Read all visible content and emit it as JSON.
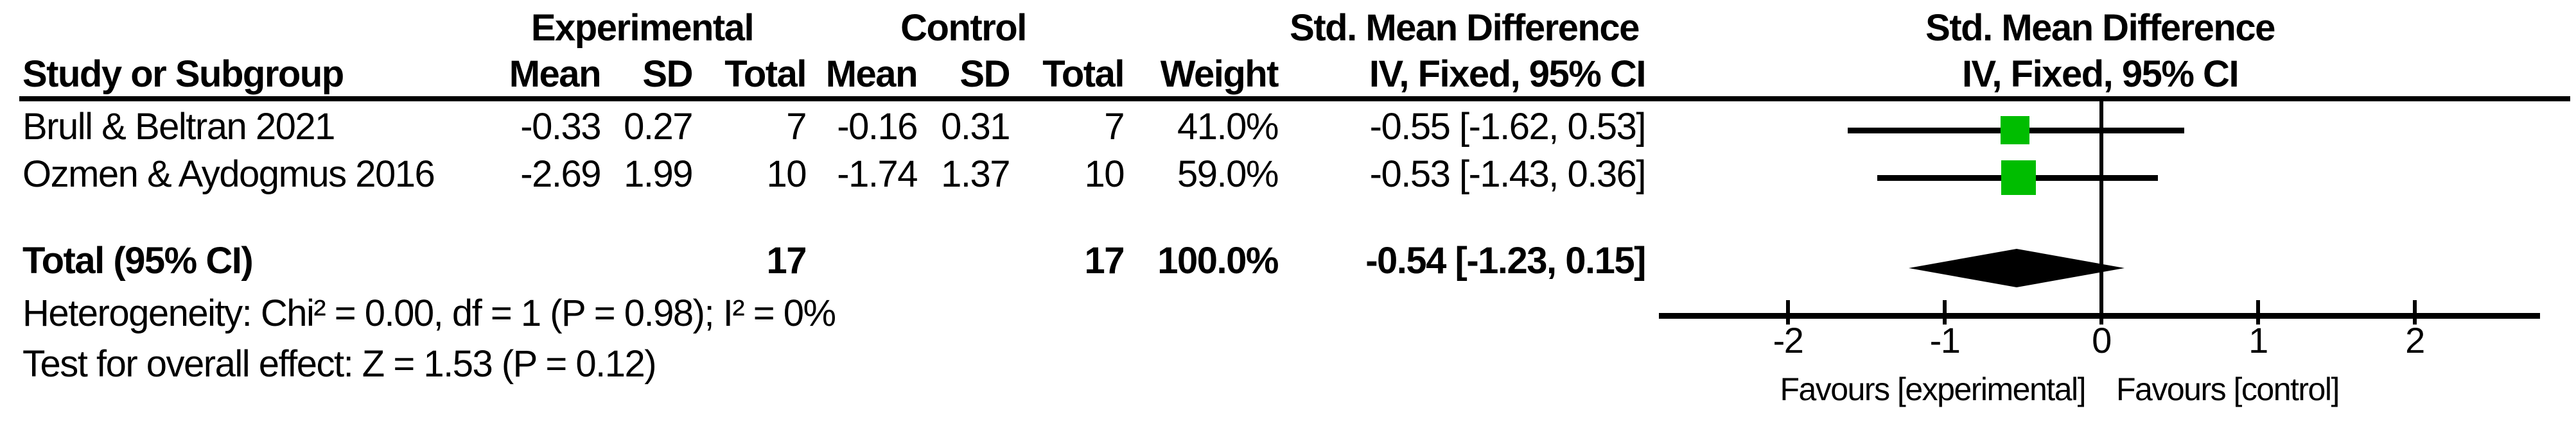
{
  "table": {
    "group_headers": {
      "experimental": "Experimental",
      "control": "Control",
      "effect": "Std. Mean Difference"
    },
    "col_headers": {
      "study": "Study or Subgroup",
      "mean": "Mean",
      "sd": "SD",
      "total": "Total",
      "mean2": "Mean",
      "sd2": "SD",
      "total2": "Total",
      "weight": "Weight",
      "ci": "IV, Fixed, 95% CI"
    },
    "rows": [
      {
        "study": "Brull & Beltran 2021",
        "exp_mean": "-0.33",
        "exp_sd": "0.27",
        "exp_total": "7",
        "ctl_mean": "-0.16",
        "ctl_sd": "0.31",
        "ctl_total": "7",
        "weight": "41.0%",
        "ci": "-0.55 [-1.62, 0.53]"
      },
      {
        "study": "Ozmen & Aydogmus 2016",
        "exp_mean": "-2.69",
        "exp_sd": "1.99",
        "exp_total": "10",
        "ctl_mean": "-1.74",
        "ctl_sd": "1.37",
        "ctl_total": "10",
        "weight": "59.0%",
        "ci": "-0.53 [-1.43, 0.36]"
      }
    ],
    "total_row": {
      "label": "Total (95% CI)",
      "exp_total": "17",
      "ctl_total": "17",
      "weight": "100.0%",
      "ci": "-0.54 [-1.23, 0.15]"
    },
    "footnotes": {
      "heterogeneity": "Heterogeneity: Chi² = 0.00, df = 1 (P = 0.98); I² = 0%",
      "overall_effect": "Test for overall effect: Z = 1.53 (P = 0.12)"
    }
  },
  "plot": {
    "header_line1": "Std. Mean Difference",
    "header_line2": "IV, Fixed, 95% CI",
    "favours_left": "Favours [experimental]",
    "favours_right": "Favours [control]"
  },
  "colors": {
    "marker_green": "#00bd00",
    "line_black": "#000000",
    "background": "#ffffff"
  },
  "chart_data": {
    "type": "forest",
    "effect_measure": "Std. Mean Difference",
    "model": "IV, Fixed, 95% CI",
    "studies": [
      {
        "name": "Brull & Beltran 2021",
        "experimental": {
          "mean": -0.33,
          "sd": 0.27,
          "total": 7
        },
        "control": {
          "mean": -0.16,
          "sd": 0.31,
          "total": 7
        },
        "weight_pct": 41.0,
        "smd": -0.55,
        "ci": [
          -1.62,
          0.53
        ]
      },
      {
        "name": "Ozmen & Aydogmus 2016",
        "experimental": {
          "mean": -2.69,
          "sd": 1.99,
          "total": 10
        },
        "control": {
          "mean": -1.74,
          "sd": 1.37,
          "total": 10
        },
        "weight_pct": 59.0,
        "smd": -0.53,
        "ci": [
          -1.43,
          0.36
        ]
      }
    ],
    "total": {
      "label": "Total (95% CI)",
      "exp_total": 17,
      "ctl_total": 17,
      "weight_pct": 100.0,
      "smd": -0.54,
      "ci": [
        -1.23,
        0.15
      ]
    },
    "heterogeneity": {
      "chi2": 0.0,
      "df": 1,
      "p": 0.98,
      "i2_pct": 0
    },
    "overall_effect": {
      "z": 1.53,
      "p": 0.12
    },
    "axis": {
      "ticks": [
        -2,
        -1,
        0,
        1,
        2
      ],
      "xlim": [
        -2.8,
        2.8
      ],
      "favours_left": "Favours [experimental]",
      "favours_right": "Favours [control]"
    }
  }
}
